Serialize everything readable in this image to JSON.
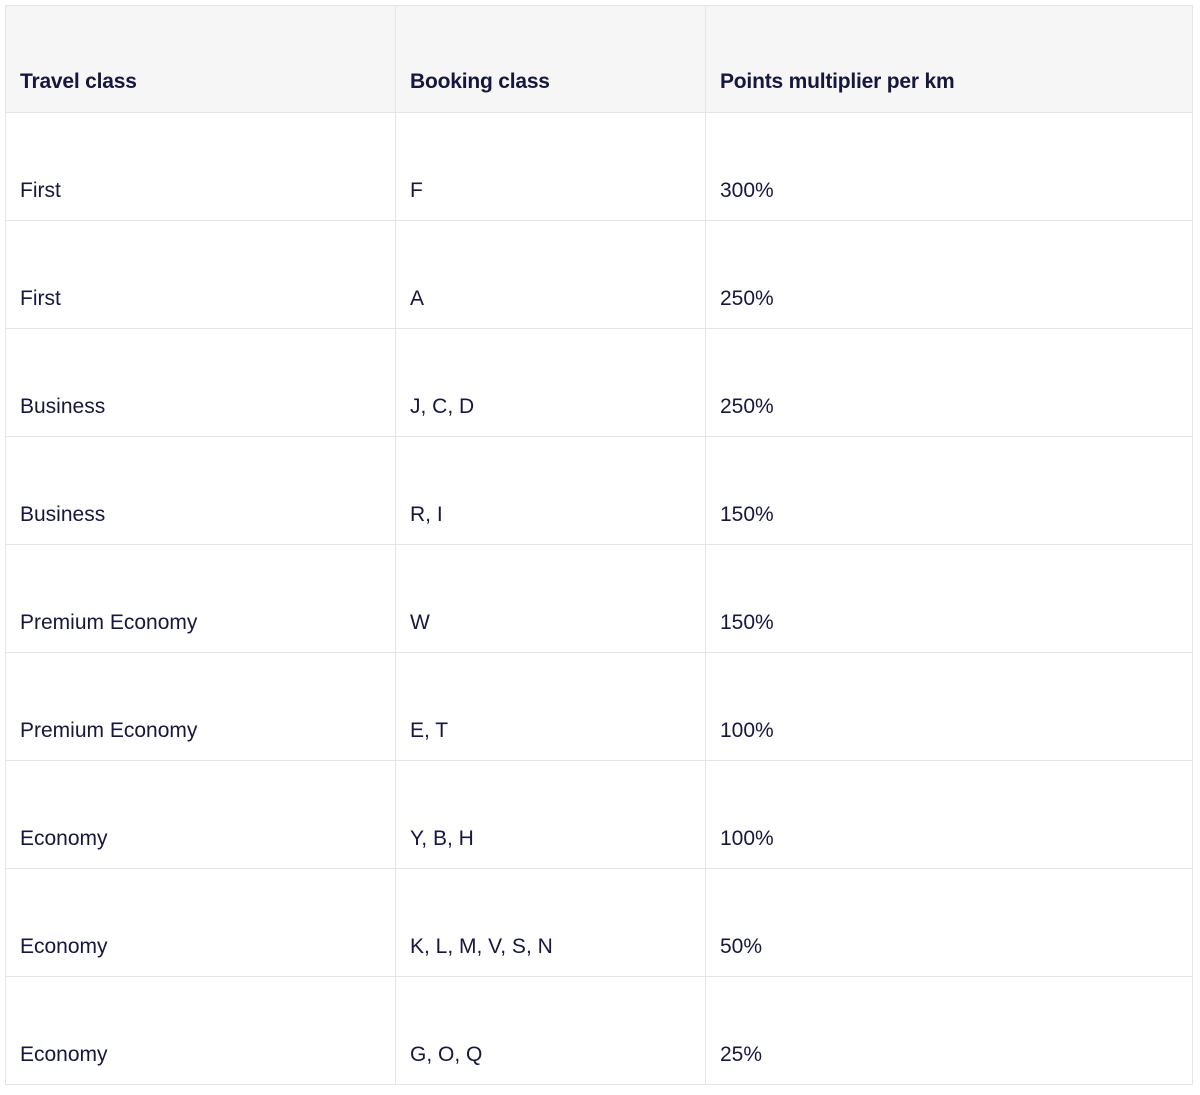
{
  "table": {
    "headers": [
      "Travel class",
      "Booking class",
      "Points multiplier per km"
    ],
    "rows": [
      [
        "First",
        "F",
        "300%"
      ],
      [
        "First",
        "A",
        "250%"
      ],
      [
        "Business",
        "J, C, D",
        "250%"
      ],
      [
        "Business",
        "R, I",
        "150%"
      ],
      [
        "Premium Economy",
        "W",
        "150%"
      ],
      [
        "Premium Economy",
        "E, T",
        "100%"
      ],
      [
        "Economy",
        "Y, B, H",
        "100%"
      ],
      [
        "Economy",
        "K, L, M, V, S, N",
        "50%"
      ],
      [
        "Economy",
        "G, O, Q",
        "25%"
      ]
    ]
  },
  "colors": {
    "text": "#17163d",
    "header_bg": "#f6f6f7",
    "border": "#e4e5ea"
  }
}
